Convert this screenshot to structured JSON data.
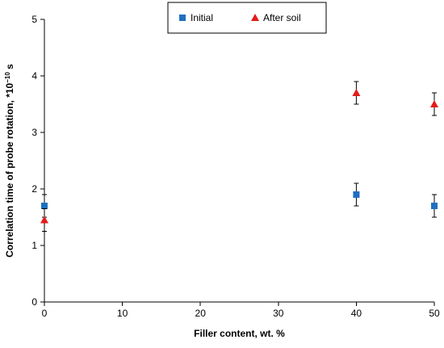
{
  "chart_data": {
    "type": "scatter",
    "xlabel": "Filler content, wt. %",
    "ylabel": "Correlation time of probe rotation, *10",
    "ylabel_exponent": "−10",
    "ylabel_unit": " s",
    "xlim": [
      0,
      50
    ],
    "ylim": [
      0,
      5
    ],
    "x_ticks": [
      0,
      10,
      20,
      30,
      40,
      50
    ],
    "y_ticks": [
      0,
      1,
      2,
      3,
      4,
      5
    ],
    "grid": false,
    "legend_position": "top",
    "series": [
      {
        "name": "Initial",
        "marker": "square",
        "color": "#1f6fc0",
        "x": [
          0,
          40,
          50
        ],
        "y": [
          1.7,
          1.9,
          1.7
        ],
        "error": [
          0.2,
          0.2,
          0.2
        ]
      },
      {
        "name": "After soil",
        "marker": "triangle",
        "color": "#e31b1b",
        "x": [
          0,
          40,
          50
        ],
        "y": [
          1.45,
          3.7,
          3.5
        ],
        "error": [
          0.2,
          0.2,
          0.2
        ]
      }
    ]
  }
}
